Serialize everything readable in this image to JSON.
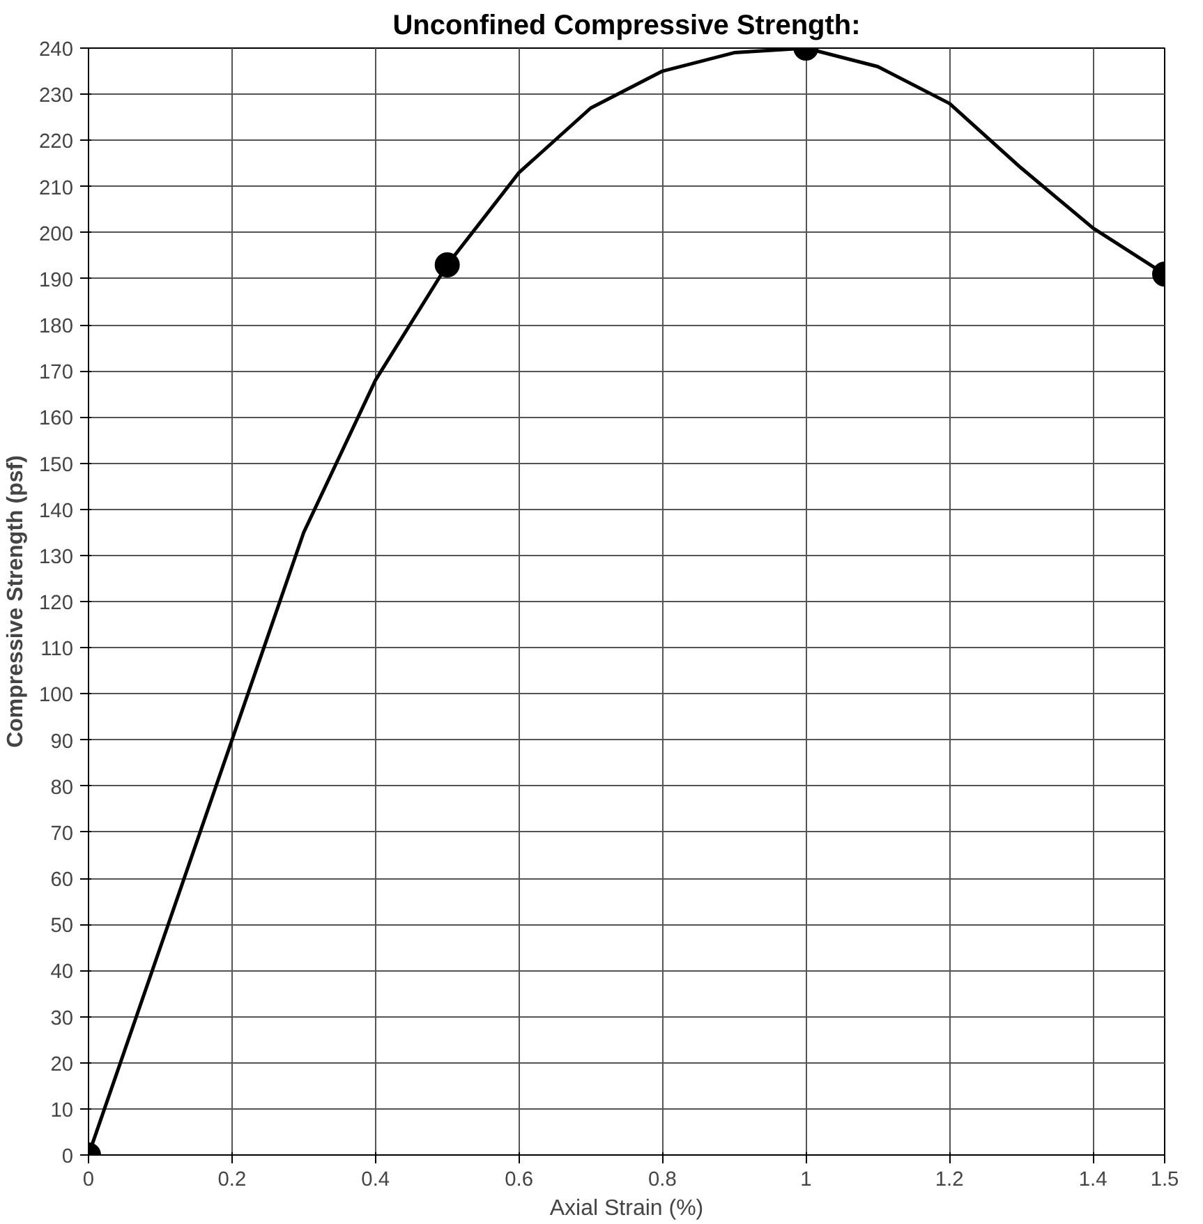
{
  "chart_data": {
    "type": "line",
    "title": "Unconfined Compressive Strength:",
    "xlabel": "Axial Strain (%)",
    "ylabel": "Compressive Strength (psf)",
    "x": [
      0,
      0.5,
      1,
      1.5
    ],
    "series": [
      {
        "marker": "none",
        "color": "#000000",
        "x": [
          0,
          0.1,
          0.2,
          0.3,
          0.4,
          0.5,
          0.6,
          0.7,
          0.8,
          0.9,
          1,
          1.1,
          1.2,
          1.3,
          1.4,
          1.5
        ],
        "values": [
          0,
          45,
          90,
          135,
          168,
          193,
          213,
          227,
          235,
          239,
          240,
          236,
          228,
          214,
          201,
          191
        ]
      },
      {
        "type": "scatter",
        "marker": "circle",
        "color": "#000000",
        "values": [
          0,
          193,
          240,
          191
        ]
      }
    ],
    "xlim": [
      0,
      1.5
    ],
    "xticks": [
      0,
      0.2,
      0.4,
      0.6,
      0.8,
      1,
      1.2,
      1.4,
      1.5
    ],
    "ylim": [
      0,
      240
    ],
    "yticks": [
      0,
      10,
      20,
      30,
      40,
      50,
      60,
      70,
      80,
      90,
      100,
      110,
      120,
      130,
      140,
      150,
      160,
      170,
      180,
      190,
      200,
      210,
      220,
      230,
      240
    ],
    "grid": true,
    "line_style": "solid"
  }
}
